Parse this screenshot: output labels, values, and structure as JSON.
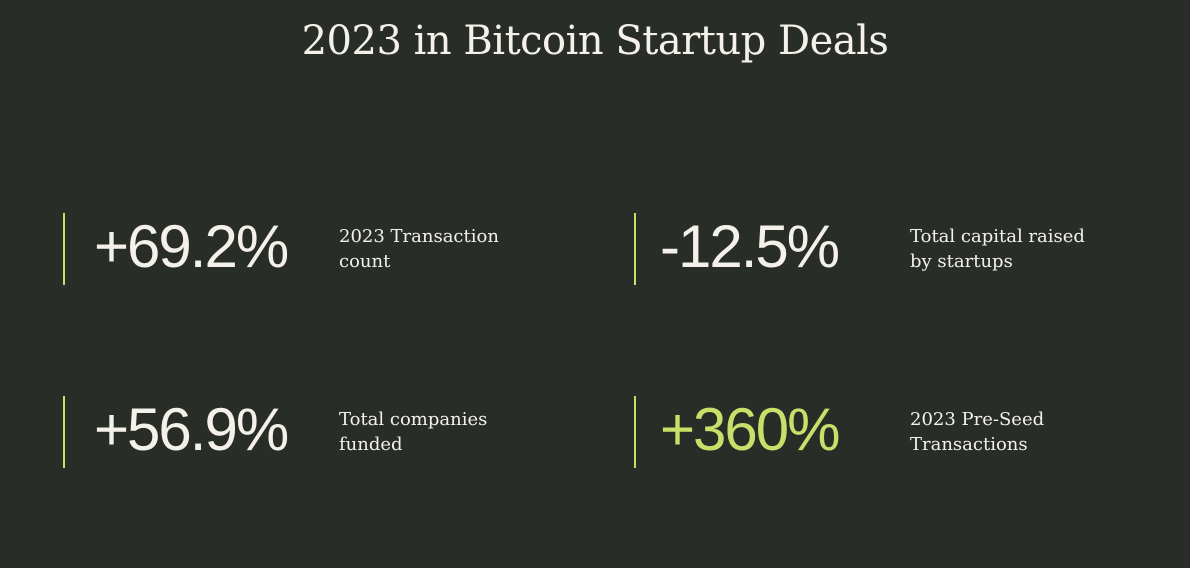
{
  "title": "2023 in Bitcoin Startup Deals",
  "colors": {
    "background": "#292d28",
    "text": "#f4f1ea",
    "accent": "#c8e06a"
  },
  "stats": [
    {
      "value": "+69.2%",
      "label_lines": [
        "2023 Transaction",
        "count"
      ],
      "highlight": false
    },
    {
      "value": "-12.5%",
      "label_lines": [
        "Total capital raised",
        "by startups"
      ],
      "highlight": false
    },
    {
      "value": "+56.9%",
      "label_lines": [
        "Total companies",
        "funded"
      ],
      "highlight": false
    },
    {
      "value": "+360%",
      "label_lines": [
        "2023 Pre-Seed",
        "Transactions"
      ],
      "highlight": true
    }
  ]
}
